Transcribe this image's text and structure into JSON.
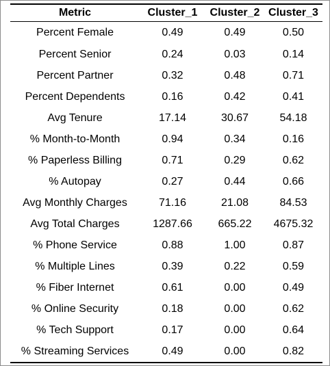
{
  "table": {
    "headers": [
      "Metric",
      "Cluster_1",
      "Cluster_2",
      "Cluster_3"
    ],
    "rows": [
      [
        "Percent Female",
        "0.49",
        "0.49",
        "0.50"
      ],
      [
        "Percent Senior",
        "0.24",
        "0.03",
        "0.14"
      ],
      [
        "Percent Partner",
        "0.32",
        "0.48",
        "0.71"
      ],
      [
        "Percent Dependents",
        "0.16",
        "0.42",
        "0.41"
      ],
      [
        "Avg Tenure",
        "17.14",
        "30.67",
        "54.18"
      ],
      [
        "% Month-to-Month",
        "0.94",
        "0.34",
        "0.16"
      ],
      [
        "% Paperless Billing",
        "0.71",
        "0.29",
        "0.62"
      ],
      [
        "% Autopay",
        "0.27",
        "0.44",
        "0.66"
      ],
      [
        "Avg Monthly Charges",
        "71.16",
        "21.08",
        "84.53"
      ],
      [
        "Avg Total Charges",
        "1287.66",
        "665.22",
        "4675.32"
      ],
      [
        "% Phone Service",
        "0.88",
        "1.00",
        "0.87"
      ],
      [
        "% Multiple Lines",
        "0.39",
        "0.22",
        "0.59"
      ],
      [
        "% Fiber Internet",
        "0.61",
        "0.00",
        "0.49"
      ],
      [
        "% Online Security",
        "0.18",
        "0.00",
        "0.62"
      ],
      [
        "% Tech Support",
        "0.17",
        "0.00",
        "0.64"
      ],
      [
        "% Streaming Services",
        "0.49",
        "0.00",
        "0.82"
      ]
    ]
  }
}
